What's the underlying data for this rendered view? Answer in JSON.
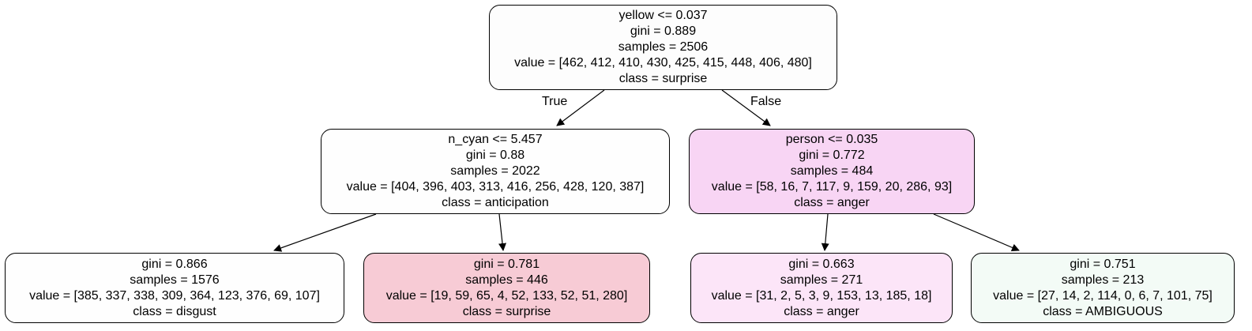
{
  "tree": {
    "nodes": [
      {
        "id": 0,
        "split": "yellow <= 0.037",
        "gini": "gini = 0.889",
        "samples": "samples = 2506",
        "value": "value = [462, 412, 410, 430, 425, 415, 448, 406, 480]",
        "class": "class = surprise",
        "fill": "#fdfdfd"
      },
      {
        "id": 1,
        "split": "n_cyan <= 5.457",
        "gini": "gini = 0.88",
        "samples": "samples = 2022",
        "value": "value = [404, 396, 403, 313, 416, 256, 428, 120, 387]",
        "class": "class = anticipation",
        "fill": "#fefefe"
      },
      {
        "id": 2,
        "split": "person <= 0.035",
        "gini": "gini = 0.772",
        "samples": "samples = 484",
        "value": "value = [58, 16, 7, 117, 9, 159, 20, 286, 93]",
        "class": "class = anger",
        "fill": "#f8d5f4"
      },
      {
        "id": 3,
        "gini": "gini = 0.866",
        "samples": "samples = 1576",
        "value": "value = [385, 337, 338, 309, 364, 123, 376, 69, 107]",
        "class": "class = disgust",
        "fill": "#fefefe"
      },
      {
        "id": 4,
        "gini": "gini = 0.781",
        "samples": "samples = 446",
        "value": "value = [19, 59, 65, 4, 52, 133, 52, 51, 280]",
        "class": "class = surprise",
        "fill": "#f7cbd5"
      },
      {
        "id": 5,
        "gini": "gini = 0.663",
        "samples": "samples = 271",
        "value": "value = [31, 2, 5, 3, 9, 153, 13, 185, 18]",
        "class": "class = anger",
        "fill": "#fce5f8"
      },
      {
        "id": 6,
        "gini": "gini = 0.751",
        "samples": "samples = 213",
        "value": "value = [27, 14, 2, 114, 0, 6, 7, 101, 75]",
        "class": "class = AMBIGUOUS",
        "fill": "#f3fbf6"
      }
    ],
    "edge_labels": {
      "true": "True",
      "false": "False"
    }
  }
}
